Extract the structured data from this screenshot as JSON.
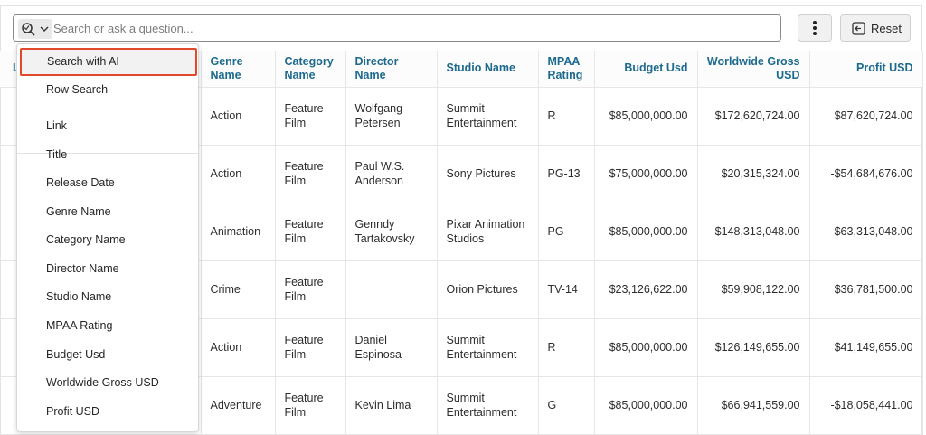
{
  "search": {
    "placeholder": "Search or ask a question...",
    "icon": "search-options-icon"
  },
  "toolbar": {
    "more_icon": "more-vertical-icon",
    "reset_label": "Reset",
    "reset_icon": "reset-icon"
  },
  "table": {
    "first_col_partial": "L",
    "columns": [
      "Genre Name",
      "Category Name",
      "Director Name",
      "Studio Name",
      "MPAA Rating",
      "Budget Usd",
      "Worldwide Gross USD",
      "Profit USD"
    ],
    "rows": [
      [
        "Action",
        "Feature Film",
        "Wolfgang Petersen",
        "Summit Entertainment",
        "R",
        "$85,000,000.00",
        "$172,620,724.00",
        "$87,620,724.00"
      ],
      [
        "Action",
        "Feature Film",
        "Paul W.S. Anderson",
        "Sony Pictures",
        "PG-13",
        "$75,000,000.00",
        "$20,315,324.00",
        "-$54,684,676.00"
      ],
      [
        "Animation",
        "Feature Film",
        "Genndy Tartakovsky",
        "Pixar Animation Studios",
        "PG",
        "$85,000,000.00",
        "$148,313,048.00",
        "$63,313,048.00"
      ],
      [
        "Crime",
        "Feature Film",
        "",
        "Orion Pictures",
        "TV-14",
        "$23,126,622.00",
        "$59,908,122.00",
        "$36,781,500.00"
      ],
      [
        "Action",
        "Feature Film",
        "Daniel Espinosa",
        "Summit Entertainment",
        "R",
        "$85,000,000.00",
        "$126,149,655.00",
        "$41,149,655.00"
      ],
      [
        "Adventure",
        "Feature Film",
        "Kevin Lima",
        "Summit Entertainment",
        "G",
        "$85,000,000.00",
        "$66,941,559.00",
        "-$18,058,441.00"
      ]
    ]
  },
  "dropdown": {
    "selected": "Search with AI",
    "items": [
      "Search with AI",
      "Row Search",
      "Link",
      "Title",
      "Release Date",
      "Genre Name",
      "Category Name",
      "Director Name",
      "Studio Name",
      "MPAA Rating",
      "Budget Usd",
      "Worldwide Gross USD",
      "Profit USD"
    ]
  },
  "colors": {
    "header_text": "#1d6a8e",
    "highlight_border": "#e0492c"
  }
}
